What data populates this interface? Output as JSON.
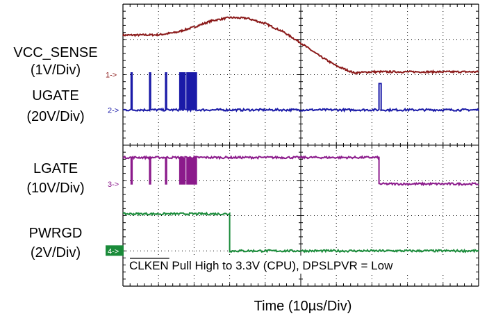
{
  "chart_data": {
    "type": "line",
    "xlabel": "Time (10µs/Div)",
    "x_divisions": 10,
    "y_divisions": 8,
    "grid": true,
    "annotation": {
      "overlined": "CLKEN",
      "text": " Pull High to 3.3V (CPU), DPSLPVR = Low"
    },
    "channels": [
      {
        "marker": "1->",
        "name": "VCC_SENSE",
        "scale": "(1V/Div)",
        "color": "#8b1a1a",
        "ground_div": 6.0,
        "x": [
          0,
          1.0,
          1.5,
          2.0,
          2.5,
          3.0,
          3.5,
          4.0,
          4.5,
          5.0,
          5.5,
          6.0,
          6.5,
          7.0,
          8.0,
          9.0,
          10.0
        ],
        "y": [
          1.12,
          1.13,
          1.2,
          1.35,
          1.53,
          1.62,
          1.6,
          1.45,
          1.22,
          0.9,
          0.55,
          0.25,
          0.05,
          0.08,
          0.08,
          0.08,
          0.08
        ]
      },
      {
        "marker": "2->",
        "name": "UGATE",
        "scale": "(20V/Div)",
        "color": "#1a1aa8",
        "ground_div": 5.0,
        "high_level": 1.05,
        "pulses_at_div": [
          0.23,
          0.75,
          1.2,
          1.6,
          1.66,
          1.72,
          1.8,
          1.86,
          1.92,
          1.98,
          2.04
        ],
        "step_at_div": 7.2,
        "step_level": 0.75
      },
      {
        "marker": "3->",
        "name": "LGATE",
        "scale": "(10V/Div)",
        "color": "#8b1a8b",
        "ground_div": 2.9,
        "high_level": 0.75,
        "low_level": 0.0,
        "drops_at_div": [
          0.23,
          0.75,
          1.2,
          1.6,
          1.66,
          1.72,
          1.8,
          1.86,
          1.92,
          1.98,
          2.04
        ],
        "fall_at_div": 7.2
      },
      {
        "marker": "4->",
        "name": "PWRGD",
        "scale": "(2V/Div)",
        "color": "#1a8b3a",
        "ground_div": 1.0,
        "high_level": 1.05,
        "low_level": 0.0,
        "fall_at_div": 3.0
      }
    ]
  }
}
